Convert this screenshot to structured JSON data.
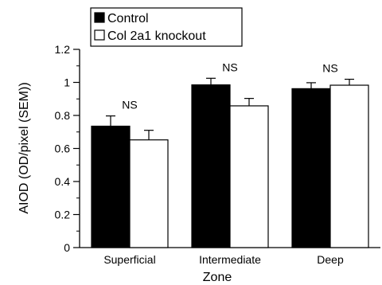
{
  "chart_data": {
    "type": "bar",
    "xlabel": "Zone",
    "ylabel": "AIOD (OD/pixel (SEM))",
    "ylim": [
      0,
      1.2
    ],
    "y_major_ticks": [
      "0",
      "0.2",
      "0.4",
      "0.6",
      "0.8",
      "1",
      "1.2"
    ],
    "y_minor_tick_step": 0.1,
    "categories": [
      "Superficial",
      "Intermediate",
      "Deep"
    ],
    "series": [
      {
        "name": "Control",
        "color": "#000000",
        "values": [
          0.735,
          0.985,
          0.962
        ],
        "errors": [
          0.062,
          0.04,
          0.036
        ]
      },
      {
        "name": "Col 2a1 knockout",
        "color": "#ffffff",
        "values": [
          0.652,
          0.858,
          0.983
        ],
        "errors": [
          0.058,
          0.045,
          0.036
        ]
      }
    ],
    "annotations": [
      "NS",
      "NS",
      "NS"
    ],
    "legend_position": "top-left",
    "grid": false
  }
}
